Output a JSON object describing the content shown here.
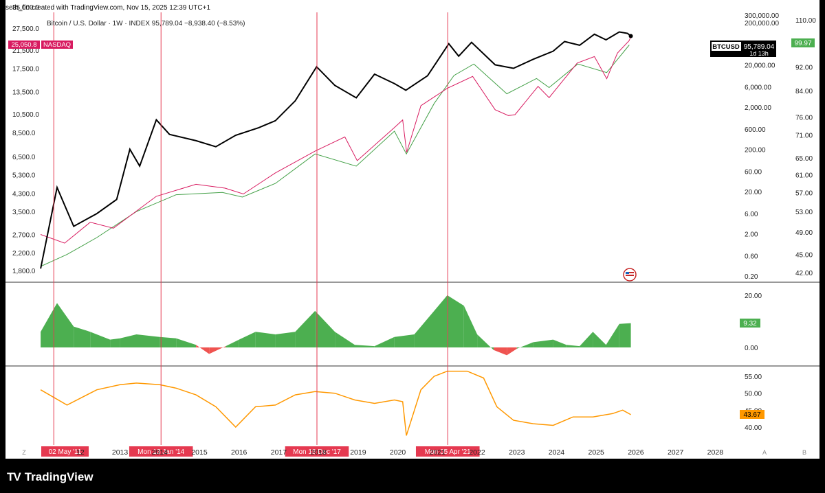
{
  "header": {
    "caption": "seth_fin created with TradingView.com, Nov 15, 2025 12:39 UTC+1"
  },
  "branding": {
    "logo_mark": "TV",
    "name": "TradingView"
  },
  "legend": {
    "series_info": "Bitcoin / U.S. Dollar · 1W · INDEX  95,789.04  −8,938.40 (−8.53%)",
    "nasdaq_value": "25,050.8",
    "nasdaq_name": "NASDAQ"
  },
  "badges": {
    "btc_symbol": "BTCUSD",
    "btc_price": "95,789.04",
    "btc_countdown": "1d 13h",
    "green_right": "99.97",
    "osc_value": "9.32",
    "rsi_value": "43.67"
  },
  "colors": {
    "btc": "#000000",
    "nasdaq": "#d81b60",
    "green_line": "#43a047",
    "osc_pos": "#4caf50",
    "osc_neg": "#ef5350",
    "rsi": "#ff9800",
    "vline": "#e53950"
  },
  "chart_data": [
    {
      "type": "line",
      "x_type": "date",
      "xlim": [
        "2011-01-01",
        "2028-12-31"
      ],
      "xticks": [
        "'11",
        "12",
        "2013",
        "2014",
        "2015",
        "2016",
        "2017",
        "2018",
        "2019",
        "2020",
        "2021",
        "2022",
        "2023",
        "2024",
        "2025",
        "2026",
        "2027",
        "2028"
      ],
      "left_axis_ticks": [
        "35,000.0",
        "27,500.0",
        "21,500.0",
        "17,500.0",
        "13,500.0",
        "10,500.0",
        "8,500.0",
        "6,500.0",
        "5,300.0",
        "4,300.0",
        "3,500.0",
        "2,700.0",
        "2,200.0",
        "1,800.0"
      ],
      "log_axis_ticks": [
        "300,000.00",
        "200,000.00",
        "20,000.00",
        "6,000.00",
        "2,000.00",
        "600.00",
        "200.00",
        "60.00",
        "20.00",
        "6.00",
        "2.00",
        "0.60",
        "0.20"
      ],
      "right_axis_ticks": [
        "110.00",
        "92.00",
        "84.00",
        "76.00",
        "71.00",
        "65.00",
        "61.00",
        "57.00",
        "53.00",
        "49.00",
        "45.00",
        "42.00"
      ],
      "log_scale": true,
      "series": [
        {
          "name": "BTCUSD",
          "points": [
            [
              "2011-01-01",
              0.3
            ],
            [
              "2011-06-01",
              25
            ],
            [
              "2011-11-01",
              3
            ],
            [
              "2012-06-01",
              6
            ],
            [
              "2012-12-01",
              13
            ],
            [
              "2013-04-01",
              200
            ],
            [
              "2013-07-01",
              80
            ],
            [
              "2013-12-01",
              1000
            ],
            [
              "2014-04-01",
              450
            ],
            [
              "2014-12-01",
              320
            ],
            [
              "2015-06-01",
              230
            ],
            [
              "2015-12-01",
              430
            ],
            [
              "2016-07-01",
              650
            ],
            [
              "2016-12-01",
              950
            ],
            [
              "2017-06-01",
              2800
            ],
            [
              "2017-12-15",
              18000
            ],
            [
              "2018-06-01",
              6500
            ],
            [
              "2018-12-15",
              3300
            ],
            [
              "2019-06-01",
              12000
            ],
            [
              "2019-12-01",
              7200
            ],
            [
              "2020-03-15",
              5000
            ],
            [
              "2020-10-01",
              11000
            ],
            [
              "2021-04-15",
              63000
            ],
            [
              "2021-07-15",
              32000
            ],
            [
              "2021-11-10",
              68000
            ],
            [
              "2022-06-15",
              20000
            ],
            [
              "2022-12-01",
              16500
            ],
            [
              "2023-06-01",
              27000
            ],
            [
              "2023-12-01",
              42000
            ],
            [
              "2024-03-15",
              71000
            ],
            [
              "2024-08-01",
              58000
            ],
            [
              "2024-12-15",
              106000
            ],
            [
              "2025-04-01",
              78000
            ],
            [
              "2025-08-01",
              120000
            ],
            [
              "2025-10-15",
              111000
            ],
            [
              "2025-11-15",
              95789.04
            ]
          ]
        },
        {
          "name": "NASDAQ",
          "points": [
            [
              "2011-01-01",
              2700
            ],
            [
              "2011-08-10",
              2450
            ],
            [
              "2012-04-01",
              3100
            ],
            [
              "2012-11-01",
              2900
            ],
            [
              "2013-12-01",
              4150
            ],
            [
              "2014-12-01",
              4750
            ],
            [
              "2015-08-25",
              4550
            ],
            [
              "2016-02-10",
              4260
            ],
            [
              "2016-12-01",
              5400
            ],
            [
              "2017-12-01",
              6900
            ],
            [
              "2018-09-01",
              8100
            ],
            [
              "2018-12-24",
              6200
            ],
            [
              "2019-12-01",
              9000
            ],
            [
              "2020-02-15",
              9800
            ],
            [
              "2020-03-23",
              6800
            ],
            [
              "2020-08-01",
              11500
            ],
            [
              "2021-04-01",
              14000
            ],
            [
              "2021-11-20",
              16000
            ],
            [
              "2022-06-15",
              11000
            ],
            [
              "2022-10-15",
              10300
            ],
            [
              "2022-12-15",
              10400
            ],
            [
              "2023-07-15",
              14300
            ],
            [
              "2023-10-25",
              12600
            ],
            [
              "2024-07-10",
              18600
            ],
            [
              "2024-12-15",
              20000
            ],
            [
              "2025-04-07",
              15600
            ],
            [
              "2025-07-15",
              20800
            ],
            [
              "2025-10-30",
              23900
            ],
            [
              "2025-11-15",
              25050.8
            ]
          ]
        },
        {
          "name": "Green line",
          "points": [
            [
              "2011-01-01",
              43
            ],
            [
              "2011-09-01",
              45
            ],
            [
              "2012-06-01",
              48
            ],
            [
              "2013-06-01",
              53
            ],
            [
              "2014-06-01",
              56.5
            ],
            [
              "2015-08-01",
              57
            ],
            [
              "2016-02-01",
              56
            ],
            [
              "2016-12-01",
              59
            ],
            [
              "2017-12-01",
              66
            ],
            [
              "2018-12-15",
              63
            ],
            [
              "2019-12-01",
              72
            ],
            [
              "2020-03-20",
              66
            ],
            [
              "2020-12-01",
              80
            ],
            [
              "2021-06-01",
              89
            ],
            [
              "2021-12-01",
              93
            ],
            [
              "2022-10-01",
              83
            ],
            [
              "2023-07-01",
              88
            ],
            [
              "2023-10-25",
              85
            ],
            [
              "2024-07-15",
              93
            ],
            [
              "2025-04-07",
              90
            ],
            [
              "2025-11-01",
              99.97
            ]
          ]
        }
      ]
    },
    {
      "type": "area",
      "x_type": "date",
      "ylim": [
        -5,
        20
      ],
      "yticks": [
        "20.00",
        "0.00"
      ],
      "series": [
        {
          "points": [
            [
              "2011-01-01",
              6
            ],
            [
              "2011-06-01",
              17
            ],
            [
              "2011-11-01",
              8
            ],
            [
              "2012-04-01",
              6
            ],
            [
              "2012-10-01",
              3
            ],
            [
              "2013-01-01",
              3.5
            ],
            [
              "2013-06-01",
              5
            ],
            [
              "2014-01-01",
              4
            ],
            [
              "2014-06-01",
              3.5
            ],
            [
              "2014-12-01",
              1
            ],
            [
              "2015-04-01",
              -2.5
            ],
            [
              "2015-09-01",
              0.5
            ],
            [
              "2016-01-01",
              3
            ],
            [
              "2016-06-01",
              6
            ],
            [
              "2016-12-01",
              5
            ],
            [
              "2017-06-01",
              6
            ],
            [
              "2017-12-01",
              14
            ],
            [
              "2018-06-01",
              6
            ],
            [
              "2018-12-01",
              1
            ],
            [
              "2019-06-01",
              0.5
            ],
            [
              "2019-12-01",
              4
            ],
            [
              "2020-06-01",
              5
            ],
            [
              "2020-12-01",
              14
            ],
            [
              "2021-04-01",
              20
            ],
            [
              "2021-09-01",
              16
            ],
            [
              "2022-01-01",
              5
            ],
            [
              "2022-06-01",
              -1
            ],
            [
              "2022-10-01",
              -3
            ],
            [
              "2023-01-01",
              -0.5
            ],
            [
              "2023-06-01",
              2
            ],
            [
              "2023-12-01",
              3
            ],
            [
              "2024-04-01",
              1
            ],
            [
              "2024-08-01",
              0.5
            ],
            [
              "2024-12-01",
              6
            ],
            [
              "2025-04-01",
              1
            ],
            [
              "2025-08-01",
              9
            ],
            [
              "2025-11-15",
              9.32
            ]
          ]
        }
      ]
    },
    {
      "type": "line",
      "x_type": "date",
      "ylim": [
        38,
        58
      ],
      "yticks": [
        "55.00",
        "50.00",
        "45.00",
        "40.00"
      ],
      "series": [
        {
          "points": [
            [
              "2011-01-01",
              51
            ],
            [
              "2011-09-01",
              46.5
            ],
            [
              "2012-06-01",
              51
            ],
            [
              "2013-01-01",
              52.5
            ],
            [
              "2013-06-01",
              53
            ],
            [
              "2014-01-01",
              52.5
            ],
            [
              "2014-06-01",
              51.5
            ],
            [
              "2014-12-01",
              49.5
            ],
            [
              "2015-06-01",
              46
            ],
            [
              "2015-12-01",
              40
            ],
            [
              "2016-06-01",
              46
            ],
            [
              "2016-12-01",
              46.5
            ],
            [
              "2017-06-01",
              49.5
            ],
            [
              "2017-12-01",
              50.5
            ],
            [
              "2018-06-01",
              50
            ],
            [
              "2018-12-01",
              48
            ],
            [
              "2019-06-01",
              47
            ],
            [
              "2019-12-01",
              48
            ],
            [
              "2020-02-15",
              47.5
            ],
            [
              "2020-03-20",
              37.5
            ],
            [
              "2020-08-01",
              51
            ],
            [
              "2020-12-01",
              55
            ],
            [
              "2021-04-01",
              56.5
            ],
            [
              "2021-10-01",
              56.5
            ],
            [
              "2022-03-01",
              54.5
            ],
            [
              "2022-07-01",
              46
            ],
            [
              "2022-12-01",
              42
            ],
            [
              "2023-06-01",
              41
            ],
            [
              "2023-12-01",
              40.5
            ],
            [
              "2024-06-01",
              43
            ],
            [
              "2024-12-01",
              43
            ],
            [
              "2025-06-01",
              44
            ],
            [
              "2025-09-01",
              45
            ],
            [
              "2025-11-15",
              43.67
            ]
          ]
        }
      ]
    }
  ],
  "vlines": [
    {
      "date": "2011-05-02",
      "label": "02 May '11"
    },
    {
      "date": "2014-01-13",
      "label": "Mon 13 Jan '14"
    },
    {
      "date": "2017-12-18",
      "label": "Mon 18 Dec '17"
    },
    {
      "date": "2021-04-05",
      "label": "Mon 05 Apr '21"
    }
  ],
  "corner_labels": {
    "left": "Z",
    "right_a": "A",
    "right_b": "B"
  }
}
